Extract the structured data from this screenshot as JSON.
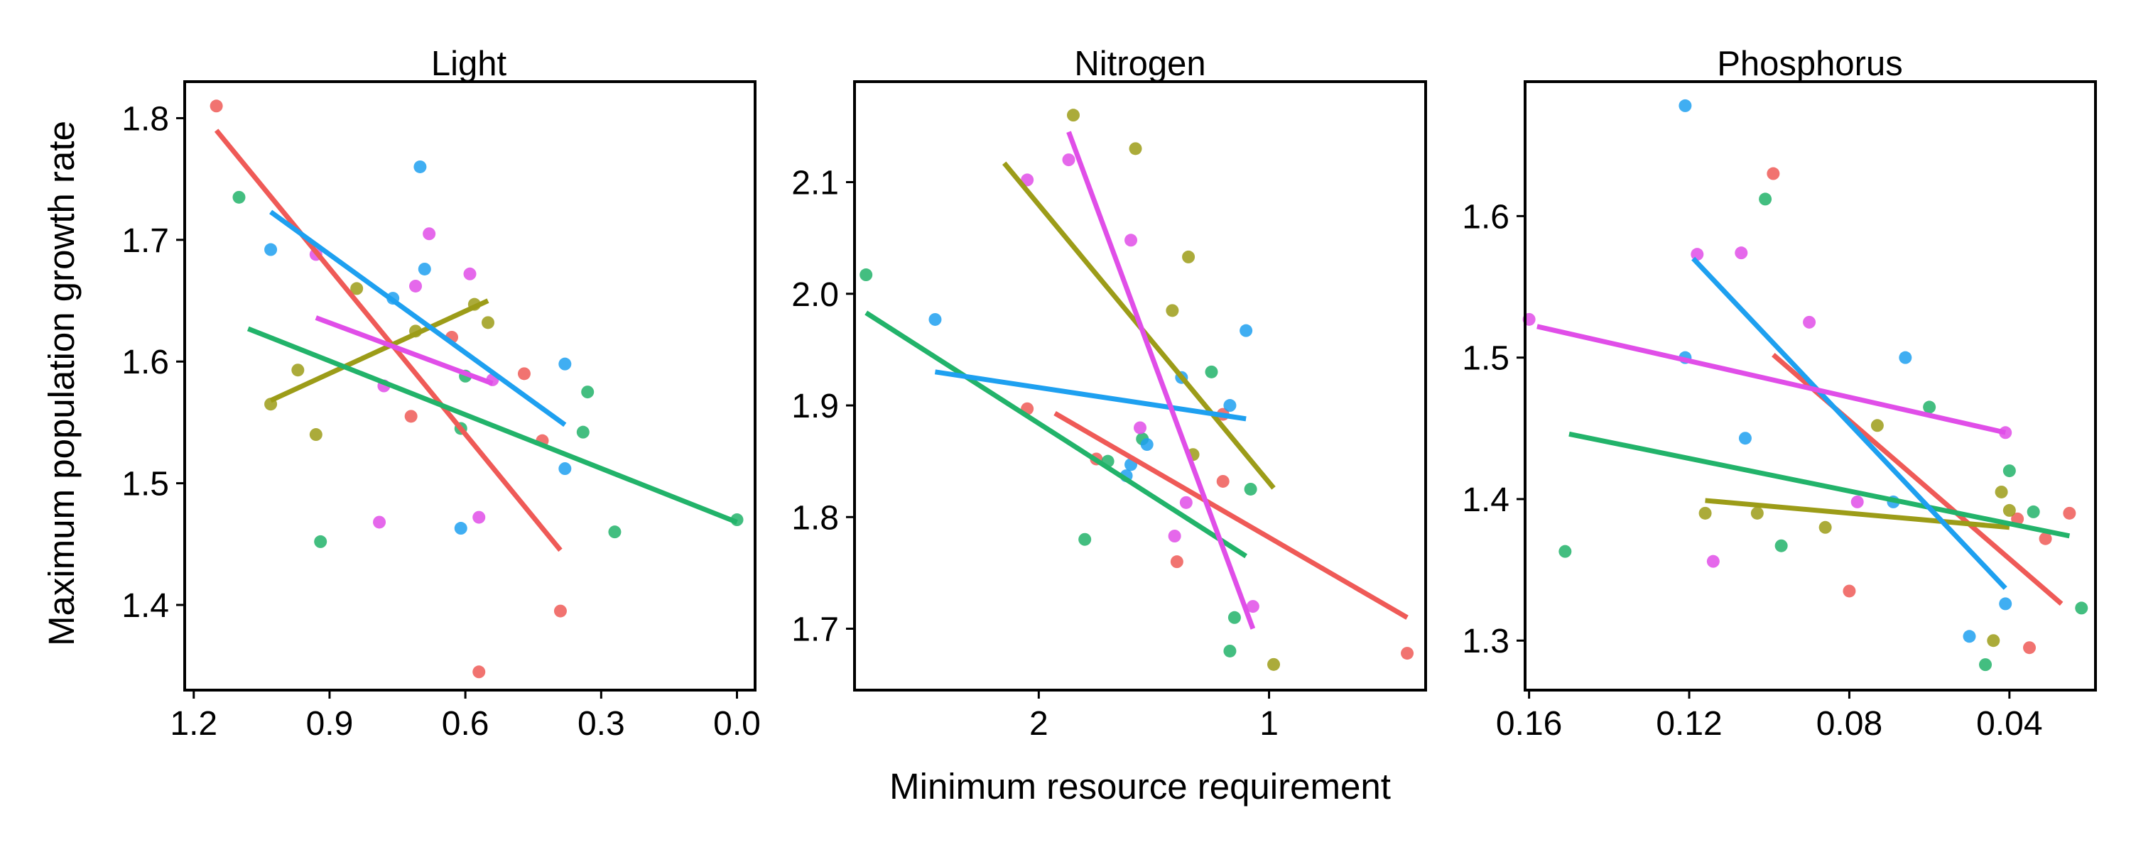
{
  "figure": {
    "ylabel": "Maximum population growth rate",
    "xlabel": "Minimum resource requirement"
  },
  "chart_data": [
    {
      "type": "scatter",
      "title": "Light",
      "x_reversed": true,
      "xlim": [
        1.22,
        -0.04
      ],
      "ylim": [
        1.33,
        1.83
      ],
      "xticks": [
        1.2,
        0.9,
        0.6,
        0.3,
        0.0
      ],
      "xtick_labels": [
        "1.2",
        "0.9",
        "0.6",
        "0.3",
        "0.0"
      ],
      "yticks": [
        1.4,
        1.5,
        1.6,
        1.7,
        1.8
      ],
      "ytick_labels": [
        "1.4",
        "1.5",
        "1.6",
        "1.7",
        "1.8"
      ],
      "series": [
        {
          "color": "#ef5a57",
          "points": [
            [
              1.15,
              1.81
            ],
            [
              0.72,
              1.555
            ],
            [
              0.63,
              1.62
            ],
            [
              0.57,
              1.345
            ],
            [
              0.47,
              1.59
            ],
            [
              0.43,
              1.535
            ],
            [
              0.39,
              1.395
            ]
          ],
          "fit": [
            [
              1.15,
              1.79
            ],
            [
              0.39,
              1.445
            ]
          ]
        },
        {
          "color": "#9c9c18",
          "points": [
            [
              1.03,
              1.565
            ],
            [
              0.97,
              1.593
            ],
            [
              0.93,
              1.54
            ],
            [
              0.84,
              1.66
            ],
            [
              0.71,
              1.625
            ],
            [
              0.58,
              1.647
            ],
            [
              0.55,
              1.632
            ]
          ],
          "fit": [
            [
              1.03,
              1.568
            ],
            [
              0.55,
              1.65
            ]
          ]
        },
        {
          "color": "#22b36a",
          "points": [
            [
              1.1,
              1.735
            ],
            [
              0.92,
              1.452
            ],
            [
              0.6,
              1.588
            ],
            [
              0.61,
              1.545
            ],
            [
              0.33,
              1.575
            ],
            [
              0.34,
              1.542
            ],
            [
              0.27,
              1.46
            ],
            [
              0.0,
              1.47
            ]
          ],
          "fit": [
            [
              1.08,
              1.627
            ],
            [
              0.0,
              1.468
            ]
          ]
        },
        {
          "color": "#1ea0f0",
          "points": [
            [
              1.03,
              1.692
            ],
            [
              0.7,
              1.76
            ],
            [
              0.69,
              1.676
            ],
            [
              0.76,
              1.652
            ],
            [
              0.61,
              1.463
            ],
            [
              0.38,
              1.598
            ],
            [
              0.38,
              1.512
            ]
          ],
          "fit": [
            [
              1.03,
              1.723
            ],
            [
              0.38,
              1.548
            ]
          ]
        },
        {
          "color": "#e04ee8",
          "points": [
            [
              0.93,
              1.688
            ],
            [
              0.68,
              1.705
            ],
            [
              0.59,
              1.672
            ],
            [
              0.71,
              1.662
            ],
            [
              0.78,
              1.58
            ],
            [
              0.54,
              1.585
            ],
            [
              0.79,
              1.468
            ],
            [
              0.57,
              1.472
            ]
          ],
          "fit": [
            [
              0.93,
              1.636
            ],
            [
              0.54,
              1.582
            ]
          ]
        }
      ]
    },
    {
      "type": "scatter",
      "title": "Nitrogen",
      "x_reversed": true,
      "xlim": [
        2.8,
        0.32
      ],
      "ylim": [
        1.645,
        2.19
      ],
      "xticks": [
        2,
        1
      ],
      "xtick_labels": [
        "2",
        "1"
      ],
      "yticks": [
        1.7,
        1.8,
        1.9,
        2.0,
        2.1
      ],
      "ytick_labels": [
        "1.7",
        "1.8",
        "1.9",
        "2.0",
        "2.1"
      ],
      "series": [
        {
          "color": "#ef5a57",
          "points": [
            [
              2.05,
              1.897
            ],
            [
              1.75,
              1.852
            ],
            [
              1.4,
              1.76
            ],
            [
              1.2,
              1.832
            ],
            [
              1.2,
              1.892
            ],
            [
              0.4,
              1.678
            ]
          ],
          "fit": [
            [
              1.93,
              1.893
            ],
            [
              0.4,
              1.71
            ]
          ]
        },
        {
          "color": "#9c9c18",
          "points": [
            [
              1.85,
              2.16
            ],
            [
              1.58,
              2.13
            ],
            [
              1.35,
              2.033
            ],
            [
              1.42,
              1.985
            ],
            [
              1.33,
              1.856
            ],
            [
              0.98,
              1.668
            ]
          ],
          "fit": [
            [
              2.15,
              2.117
            ],
            [
              0.98,
              1.826
            ]
          ]
        },
        {
          "color": "#22b36a",
          "points": [
            [
              2.75,
              2.017
            ],
            [
              1.8,
              1.78
            ],
            [
              1.7,
              1.85
            ],
            [
              1.55,
              1.87
            ],
            [
              1.25,
              1.93
            ],
            [
              1.08,
              1.825
            ],
            [
              1.15,
              1.71
            ],
            [
              1.17,
              1.68
            ]
          ],
          "fit": [
            [
              2.75,
              1.983
            ],
            [
              1.1,
              1.765
            ]
          ]
        },
        {
          "color": "#1ea0f0",
          "points": [
            [
              2.45,
              1.977
            ],
            [
              1.38,
              1.925
            ],
            [
              1.1,
              1.967
            ],
            [
              1.17,
              1.9
            ],
            [
              1.53,
              1.865
            ],
            [
              1.6,
              1.847
            ],
            [
              1.62,
              1.837
            ]
          ],
          "fit": [
            [
              2.45,
              1.93
            ],
            [
              1.1,
              1.888
            ]
          ]
        },
        {
          "color": "#e04ee8",
          "points": [
            [
              2.05,
              2.102
            ],
            [
              1.87,
              2.12
            ],
            [
              1.6,
              2.048
            ],
            [
              1.56,
              1.88
            ],
            [
              1.41,
              1.783
            ],
            [
              1.36,
              1.813
            ],
            [
              1.07,
              1.72
            ]
          ],
          "fit": [
            [
              1.87,
              2.145
            ],
            [
              1.07,
              1.7
            ]
          ]
        }
      ]
    },
    {
      "type": "scatter",
      "title": "Phosphorus",
      "x_reversed": true,
      "xlim": [
        0.161,
        0.0185
      ],
      "ylim": [
        1.265,
        1.695
      ],
      "xticks": [
        0.16,
        0.12,
        0.08,
        0.04
      ],
      "xtick_labels": [
        "0.16",
        "0.12",
        "0.08",
        "0.04"
      ],
      "yticks": [
        1.3,
        1.4,
        1.5,
        1.6
      ],
      "ytick_labels": [
        "1.3",
        "1.4",
        "1.5",
        "1.6"
      ],
      "series": [
        {
          "color": "#ef5a57",
          "points": [
            [
              0.099,
              1.63
            ],
            [
              0.08,
              1.335
            ],
            [
              0.038,
              1.386
            ],
            [
              0.035,
              1.295
            ],
            [
              0.031,
              1.372
            ],
            [
              0.025,
              1.39
            ]
          ],
          "fit": [
            [
              0.099,
              1.502
            ],
            [
              0.027,
              1.326
            ]
          ]
        },
        {
          "color": "#9c9c18",
          "points": [
            [
              0.116,
              1.39
            ],
            [
              0.103,
              1.39
            ],
            [
              0.086,
              1.38
            ],
            [
              0.073,
              1.452
            ],
            [
              0.042,
              1.405
            ],
            [
              0.04,
              1.392
            ],
            [
              0.044,
              1.3
            ]
          ],
          "fit": [
            [
              0.116,
              1.399
            ],
            [
              0.04,
              1.38
            ]
          ]
        },
        {
          "color": "#22b36a",
          "points": [
            [
              0.151,
              1.363
            ],
            [
              0.101,
              1.612
            ],
            [
              0.097,
              1.367
            ],
            [
              0.06,
              1.465
            ],
            [
              0.04,
              1.42
            ],
            [
              0.034,
              1.391
            ],
            [
              0.022,
              1.323
            ],
            [
              0.046,
              1.283
            ]
          ],
          "fit": [
            [
              0.15,
              1.446
            ],
            [
              0.025,
              1.374
            ]
          ]
        },
        {
          "color": "#1ea0f0",
          "points": [
            [
              0.121,
              1.678
            ],
            [
              0.121,
              1.5
            ],
            [
              0.106,
              1.443
            ],
            [
              0.066,
              1.5
            ],
            [
              0.069,
              1.398
            ],
            [
              0.041,
              1.326
            ],
            [
              0.05,
              1.303
            ]
          ],
          "fit": [
            [
              0.119,
              1.57
            ],
            [
              0.041,
              1.337
            ]
          ]
        },
        {
          "color": "#e04ee8",
          "points": [
            [
              0.16,
              1.527
            ],
            [
              0.118,
              1.573
            ],
            [
              0.107,
              1.574
            ],
            [
              0.09,
              1.525
            ],
            [
              0.078,
              1.398
            ],
            [
              0.041,
              1.447
            ],
            [
              0.114,
              1.356
            ]
          ],
          "fit": [
            [
              0.158,
              1.522
            ],
            [
              0.041,
              1.447
            ]
          ]
        }
      ]
    }
  ]
}
